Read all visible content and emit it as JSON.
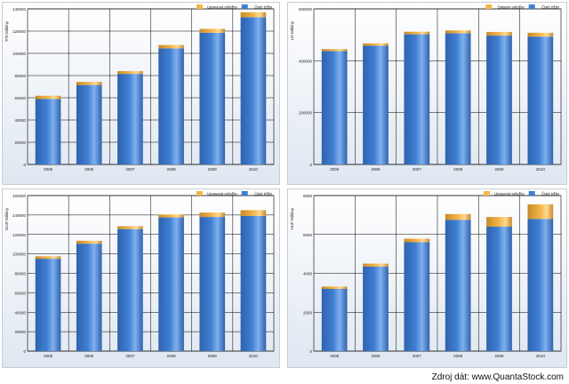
{
  "source": {
    "label": "Zdroj dát:",
    "site": "www.QuantaStock.com"
  },
  "colors": {
    "series_top": "#f4b64a",
    "series_base": "#3f7fd3",
    "grid": "#000000"
  },
  "chart_data": [
    {
      "type": "bar",
      "stacked": true,
      "title": "",
      "xlabel": "",
      "ylabel": "P/S Milióny",
      "ylim": [
        0,
        140000
      ],
      "yticks": [
        0,
        20000,
        40000,
        60000,
        80000,
        100000,
        120000,
        140000
      ],
      "categories": [
        "2005",
        "2006",
        "2007",
        "2008",
        "2009",
        "2010"
      ],
      "series": [
        {
          "name": "Čisté tržby",
          "values": [
            59000,
            71500,
            81500,
            104500,
            118500,
            132500
          ]
        },
        {
          "name": "Upravená položky",
          "values": [
            2800,
            2800,
            2500,
            3000,
            3500,
            4500
          ]
        }
      ],
      "legend": "top-right"
    },
    {
      "type": "bar",
      "stacked": true,
      "title": "",
      "xlabel": "",
      "ylabel": "UA Milióny",
      "ylim": [
        0,
        600000
      ],
      "yticks": [
        0,
        200000,
        400000,
        600000
      ],
      "categories": [
        "2005",
        "2006",
        "2007",
        "2008",
        "2009",
        "2010"
      ],
      "series": [
        {
          "name": "Čisté tržby",
          "values": [
            437000,
            458000,
            502000,
            506000,
            497000,
            493000
          ]
        },
        {
          "name": "Ostatné položky",
          "values": [
            8000,
            9000,
            10000,
            11000,
            14000,
            15000
          ]
        }
      ],
      "legend": "top-right"
    },
    {
      "type": "bar",
      "stacked": true,
      "title": "",
      "xlabel": "",
      "ylabel": "EUR Milióny",
      "ylim": [
        0,
        160000
      ],
      "yticks": [
        0,
        20000,
        40000,
        60000,
        80000,
        100000,
        120000,
        140000,
        160000
      ],
      "categories": [
        "2005",
        "2006",
        "2007",
        "2008",
        "2009",
        "2010"
      ],
      "series": [
        {
          "name": "Čisté tržby",
          "values": [
            95000,
            110500,
            125500,
            137500,
            138000,
            139000
          ]
        },
        {
          "name": "Upravená položky",
          "values": [
            2500,
            3000,
            3000,
            3000,
            4500,
            6000
          ]
        }
      ],
      "legend": "top-right"
    },
    {
      "type": "bar",
      "stacked": true,
      "title": "",
      "xlabel": "",
      "ylabel": "HUF Milióny",
      "ylim": [
        0,
        8000
      ],
      "yticks": [
        0,
        2000,
        4000,
        6000,
        8000
      ],
      "categories": [
        "2005",
        "2006",
        "2007",
        "2008",
        "2009",
        "2010"
      ],
      "series": [
        {
          "name": "Čisté tržby",
          "values": [
            3200,
            4350,
            5600,
            6750,
            6400,
            6800
          ]
        },
        {
          "name": "Upravená položky",
          "values": [
            120,
            150,
            180,
            300,
            500,
            750
          ]
        }
      ],
      "legend": "top-right"
    }
  ]
}
